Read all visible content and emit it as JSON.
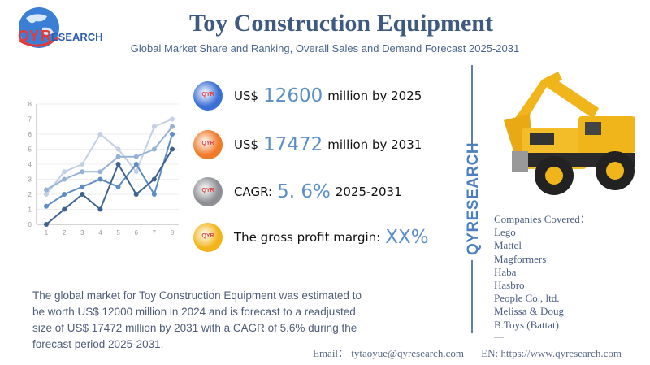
{
  "brand": {
    "logo_text_qy": "QY",
    "logo_text_r": "R",
    "logo_text_rest": "ESEARCH",
    "vertical_brand": "QYRESEARCH"
  },
  "header": {
    "title": "Toy Construction Equipment",
    "subtitle": "Global Market Share and Ranking, Overall Sales and Demand Forecast 2025-2031"
  },
  "stats": [
    {
      "icon": "globe-icon",
      "color": "#3b6fd6",
      "prefix": "US$",
      "value": "12600",
      "suffix": "million by 2025"
    },
    {
      "icon": "globe-icon",
      "color": "#ef7a2a",
      "prefix": "US$",
      "value": "17472",
      "suffix": "million by 2031"
    },
    {
      "icon": "globe-icon",
      "color": "#8d8f94",
      "prefix": "CAGR:",
      "value": "5. 6%",
      "suffix": "2025-2031"
    },
    {
      "icon": "globe-icon",
      "color": "#f2b41a",
      "prefix": "The gross profit margin:",
      "value": "XX%",
      "suffix": ""
    }
  ],
  "ball_label": "QYR",
  "companies": {
    "heading": "Companies Covered：",
    "items": [
      "Lego",
      "Mattel",
      "Magformers",
      "Haba",
      "Hasbro",
      "People Co., ltd.",
      "Melissa & Doug",
      "B.Toys (Battat)",
      "......"
    ]
  },
  "description": "The global market for Toy Construction Equipment was estimated to be worth US$ 12000 million in 2024 and is forecast to a readjusted size of US$ 17472 million by 2031 with a CAGR of 5.6% during the forecast period 2025-2031.",
  "footer": {
    "email": "Email： tytaoyue@qyresearch.com",
    "website": "EN: https://www.qyresearch.com"
  },
  "chart_data": {
    "type": "line",
    "title": "",
    "xlabel": "",
    "ylabel": "",
    "x": [
      1,
      2,
      3,
      4,
      5,
      6,
      7,
      8
    ],
    "ylim": [
      0,
      8
    ],
    "yticks": [
      0,
      1,
      2,
      3,
      4,
      5,
      6,
      7,
      8
    ],
    "grid": true,
    "series": [
      {
        "name": "series-1",
        "color": "#c3d0e4",
        "values": [
          2,
          3.5,
          4,
          6,
          5,
          3.5,
          6.5,
          7
        ]
      },
      {
        "name": "series-2",
        "color": "#95b1d6",
        "values": [
          2.3,
          3,
          3.5,
          3.5,
          4.5,
          4.5,
          5,
          6.5
        ]
      },
      {
        "name": "series-3",
        "color": "#5e8cc4",
        "values": [
          1.2,
          2,
          2.5,
          3,
          2.5,
          4,
          2,
          6
        ]
      },
      {
        "name": "series-4",
        "color": "#3d628f",
        "values": [
          0,
          1,
          2,
          1,
          4,
          2,
          3,
          5
        ]
      }
    ]
  }
}
